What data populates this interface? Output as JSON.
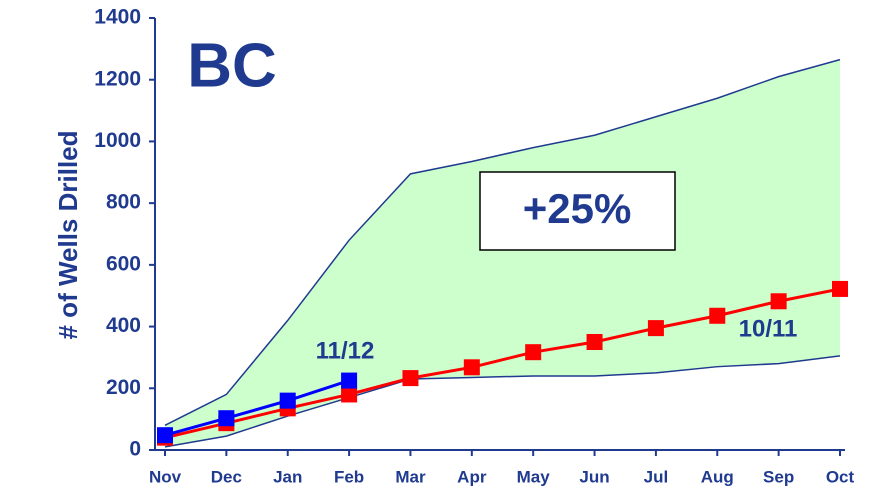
{
  "chart_data": {
    "type": "line",
    "title": "BC",
    "y_label": "# of Wells Drilled",
    "annotation": "+25%",
    "categories": [
      "Nov",
      "Dec",
      "Jan",
      "Feb",
      "Mar",
      "Apr",
      "May",
      "Jun",
      "Jul",
      "Aug",
      "Sep",
      "Oct"
    ],
    "band": {
      "color": "#ccffcc",
      "line_color": "#1f3a8f",
      "upper": [
        80,
        180,
        420,
        680,
        895,
        935,
        980,
        1020,
        1080,
        1140,
        1210,
        1265
      ],
      "lower": [
        10,
        45,
        110,
        170,
        230,
        235,
        240,
        240,
        250,
        270,
        280,
        305
      ]
    },
    "series": [
      {
        "name": "11/12",
        "color": "#0000ff",
        "values": [
          48,
          103,
          160,
          225,
          null,
          null,
          null,
          null,
          null,
          null,
          null,
          null
        ]
      },
      {
        "name": "10/11",
        "color": "#ff0000",
        "values": [
          40,
          87,
          135,
          180,
          233,
          268,
          317,
          350,
          395,
          435,
          482,
          522
        ]
      }
    ],
    "ylim": [
      0,
      1400
    ],
    "yticks": [
      0,
      200,
      400,
      600,
      800,
      1000,
      1200,
      1400
    ]
  }
}
